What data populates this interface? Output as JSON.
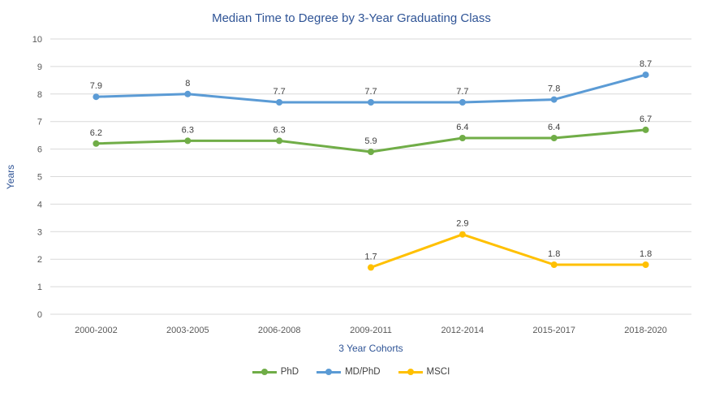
{
  "chart_data": {
    "type": "line",
    "title": "Median Time to Degree by 3-Year Graduating Class",
    "xlabel": "3 Year Cohorts",
    "ylabel": "Years",
    "ylim": [
      0,
      10
    ],
    "ytick_step": 1,
    "grid": true,
    "legend_position": "bottom",
    "categories": [
      "2000-2002",
      "2003-2005",
      "2006-2008",
      "2009-2011",
      "2012-2014",
      "2015-2017",
      "2018-2020"
    ],
    "series": [
      {
        "name": "PhD",
        "color": "#70AD47",
        "values": [
          6.2,
          6.3,
          6.3,
          5.9,
          6.4,
          6.4,
          6.7
        ],
        "labels": [
          "6.2",
          "6.3",
          "6.3",
          "5.9",
          "6.4",
          "6.4",
          "6.7"
        ]
      },
      {
        "name": "MD/PhD",
        "color": "#5B9BD5",
        "values": [
          7.9,
          8,
          7.7,
          7.7,
          7.7,
          7.8,
          8.7
        ],
        "labels": [
          "7.9",
          "8",
          "7.7",
          "7.7",
          "7.7",
          "7.8",
          "8.7"
        ]
      },
      {
        "name": "MSCI",
        "color": "#FFC000",
        "values": [
          null,
          null,
          null,
          1.7,
          2.9,
          1.8,
          1.8
        ],
        "labels": [
          null,
          null,
          null,
          "1.7",
          "2.9",
          "1.8",
          "1.8"
        ]
      }
    ]
  },
  "colors": {
    "background": "#FFFFFF",
    "title_text": "#2F5496",
    "axis_title_text": "#2F5496",
    "tick_text": "#595959",
    "data_label_text": "#404040",
    "legend_text": "#404040",
    "gridline": "#D9D9D9"
  }
}
